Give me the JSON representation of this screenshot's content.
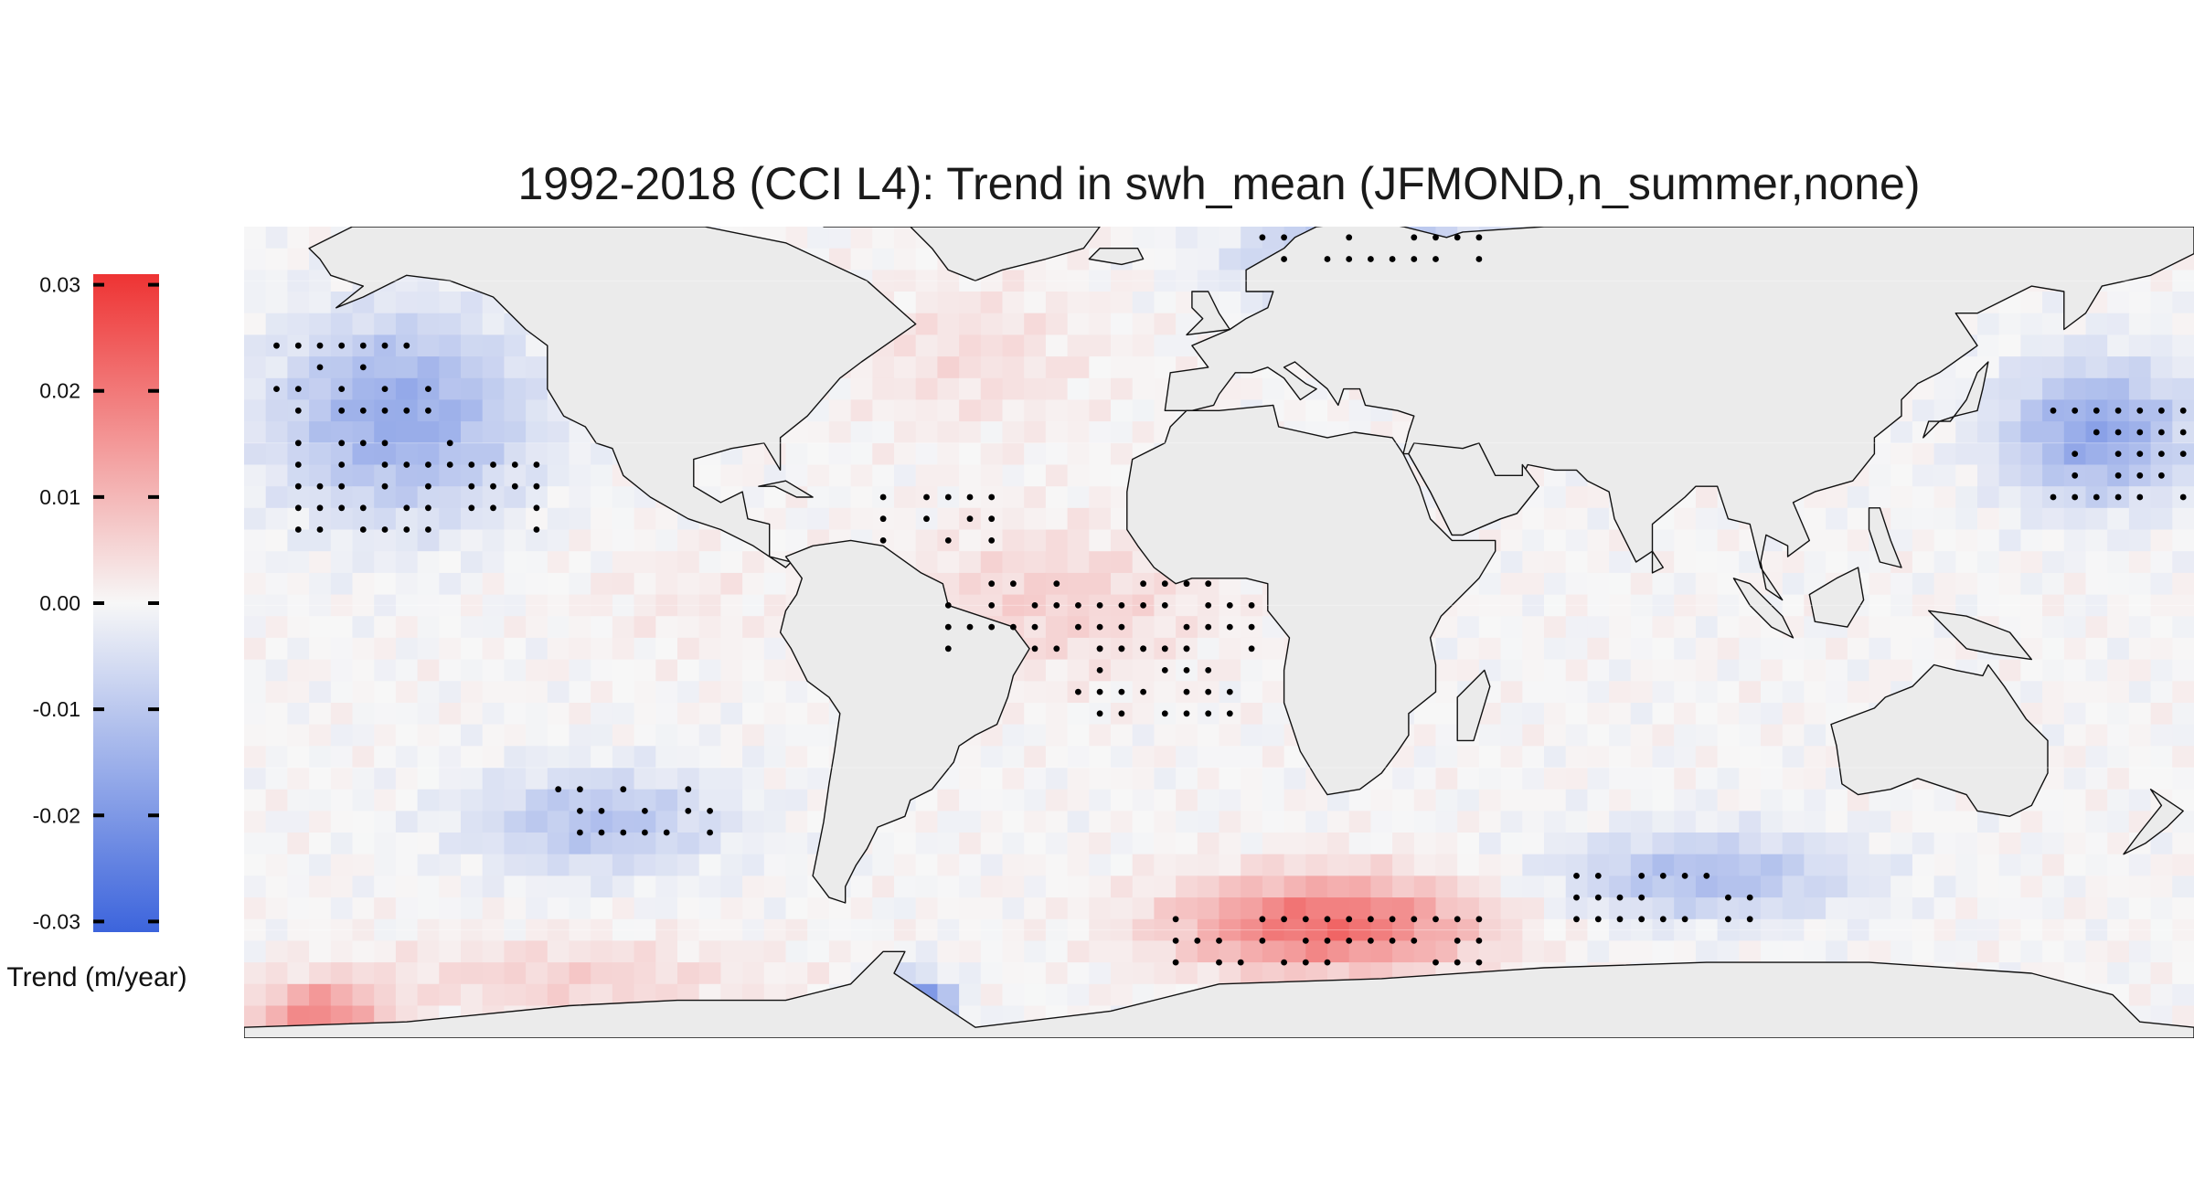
{
  "title": "1992-2018 (CCI L4): Trend in swh_mean (JFMOND,n_summer,none)",
  "colors": {
    "land": "#ebebeb",
    "neutral": "#f7f7f7",
    "positive": "#ee3333",
    "negative": "#3c64dc",
    "coastline": "#111111",
    "stipple": "#000000"
  },
  "legend": {
    "title": "Trend (m/year)",
    "min": -0.031,
    "max": 0.031,
    "ticks": [
      {
        "value": 0.03,
        "label": "0.03"
      },
      {
        "value": 0.02,
        "label": "0.02"
      },
      {
        "value": 0.01,
        "label": "0.01"
      },
      {
        "value": 0.0,
        "label": "0.00"
      },
      {
        "value": -0.01,
        "label": "-0.01"
      },
      {
        "value": -0.02,
        "label": "-0.02"
      },
      {
        "value": -0.03,
        "label": "-0.03"
      }
    ]
  },
  "map": {
    "projection": "equirectangular",
    "lon_range": [
      -180,
      180
    ],
    "lat_range": [
      -80,
      70
    ],
    "cell_size_deg": 4,
    "trend_regions": [
      {
        "id": "n-pacific",
        "lon": [
          -176,
          -126
        ],
        "lat": [
          16,
          54
        ],
        "trend": -0.016
      },
      {
        "id": "nw-pacific",
        "lon": [
          144,
          180
        ],
        "lat": [
          20,
          44
        ],
        "trend": -0.017
      },
      {
        "id": "tropical-atlantic",
        "lon": [
          -60,
          0
        ],
        "lat": [
          -12,
          14
        ],
        "trend": 0.006
      },
      {
        "id": "north-atlantic",
        "lon": [
          -70,
          -20
        ],
        "lat": [
          32,
          60
        ],
        "trend": 0.004
      },
      {
        "id": "barents-norwegian",
        "lon": [
          4,
          52
        ],
        "lat": [
          58,
          70
        ],
        "trend": -0.015
      },
      {
        "id": "s-pacific",
        "lon": [
          -140,
          -90
        ],
        "lat": [
          -48,
          -32
        ],
        "trend": -0.011
      },
      {
        "id": "s-indian",
        "lon": [
          60,
          120
        ],
        "lat": [
          -56,
          -44
        ],
        "trend": -0.012
      },
      {
        "id": "southern-atlantic",
        "lon": [
          -10,
          50
        ],
        "lat": [
          -66,
          -52
        ],
        "trend": 0.022
      },
      {
        "id": "southern-ocean-pacific",
        "lon": [
          -160,
          -80
        ],
        "lat": [
          -74,
          -64
        ],
        "trend": 0.006
      },
      {
        "id": "ross-sea",
        "lon": [
          -176,
          -156
        ],
        "lat": [
          -80,
          -72
        ],
        "trend": 0.018
      },
      {
        "id": "drake-passage",
        "lon": [
          -60,
          -52
        ],
        "lat": [
          -78,
          -72
        ],
        "trend": -0.03
      },
      {
        "id": "east-tropical-pacific",
        "lon": [
          -120,
          -80
        ],
        "lat": [
          -8,
          10
        ],
        "trend": 0.002
      }
    ],
    "stipple_regions": [
      {
        "lon": [
          -176,
          -148
        ],
        "lat": [
          36,
          50
        ]
      },
      {
        "lon": [
          -172,
          -128
        ],
        "lat": [
          14,
          32
        ]
      },
      {
        "lon": [
          152,
          180
        ],
        "lat": [
          20,
          38
        ]
      },
      {
        "lon": [
          -52,
          4
        ],
        "lat": [
          -6,
          6
        ]
      },
      {
        "lon": [
          -28,
          2
        ],
        "lat": [
          -20,
          -6
        ]
      },
      {
        "lon": [
          -10,
          48
        ],
        "lat": [
          -66,
          -56
        ]
      },
      {
        "lon": [
          -124,
          -96
        ],
        "lat": [
          -42,
          -32
        ]
      },
      {
        "lon": [
          64,
          96
        ],
        "lat": [
          -56,
          -48
        ]
      },
      {
        "lon": [
          6,
          48
        ],
        "lat": [
          66,
          70
        ]
      },
      {
        "lon": [
          -64,
          -44
        ],
        "lat": [
          12,
          22
        ]
      }
    ]
  }
}
